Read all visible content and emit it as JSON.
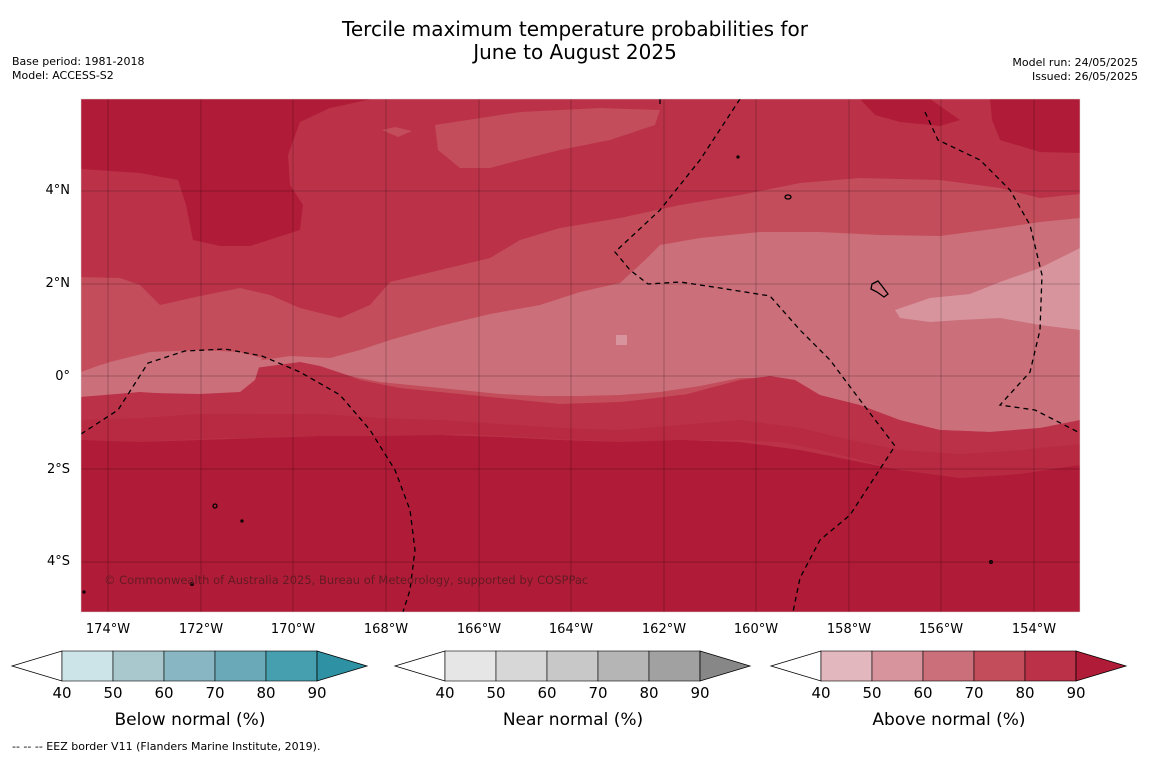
{
  "title": {
    "line1": "Tercile maximum temperature probabilities for",
    "line2": "June to August 2025"
  },
  "meta_left": {
    "base_period": "Base period: 1981-2018",
    "model": "Model: ACCESS-S2"
  },
  "meta_right": {
    "model_run": "Model run: 24/05/2025",
    "issued": "Issued: 26/05/2025"
  },
  "map": {
    "lat_labels": [
      "4°N",
      "2°N",
      "0°",
      "2°S",
      "4°S"
    ],
    "lon_labels": [
      "174°W",
      "172°W",
      "170°W",
      "168°W",
      "166°W",
      "164°W",
      "162°W",
      "160°W",
      "158°W",
      "156°W",
      "154°W"
    ],
    "credit": "© Commonwealth of Australia 2025, Bureau of Meteorology, supported by COSPPac",
    "colors": {
      "above_40_50": "#e2b7bd",
      "above_50_60": "#d7949d",
      "above_60_70": "#cb6f7a",
      "above_70_80": "#c34d5a",
      "above_80_90": "#bb3148",
      "above_90": "#b01c37"
    }
  },
  "colorbars": [
    {
      "name": "below",
      "title": "Below normal (%)",
      "ticks": [
        "40",
        "50",
        "60",
        "70",
        "80",
        "90"
      ],
      "colors": [
        "#cce3e8",
        "#a8c8ce",
        "#89b6c3",
        "#6aaab8",
        "#469fae",
        "#2f91a4"
      ]
    },
    {
      "name": "near",
      "title": "Near normal (%)",
      "ticks": [
        "40",
        "50",
        "60",
        "70",
        "80",
        "90"
      ],
      "colors": [
        "#e6e6e6",
        "#d7d7d7",
        "#c8c8c8",
        "#b5b5b5",
        "#a1a1a1",
        "#878787"
      ]
    },
    {
      "name": "above",
      "title": "Above normal (%)",
      "ticks": [
        "40",
        "50",
        "60",
        "70",
        "80",
        "90"
      ],
      "colors": [
        "#e2b7bd",
        "#d7949d",
        "#cb6f7a",
        "#c34d5a",
        "#bb3148",
        "#b01c37"
      ]
    }
  ],
  "footer": "--  --  -- EEZ border V11 (Flanders Marine Institute, 2019)."
}
